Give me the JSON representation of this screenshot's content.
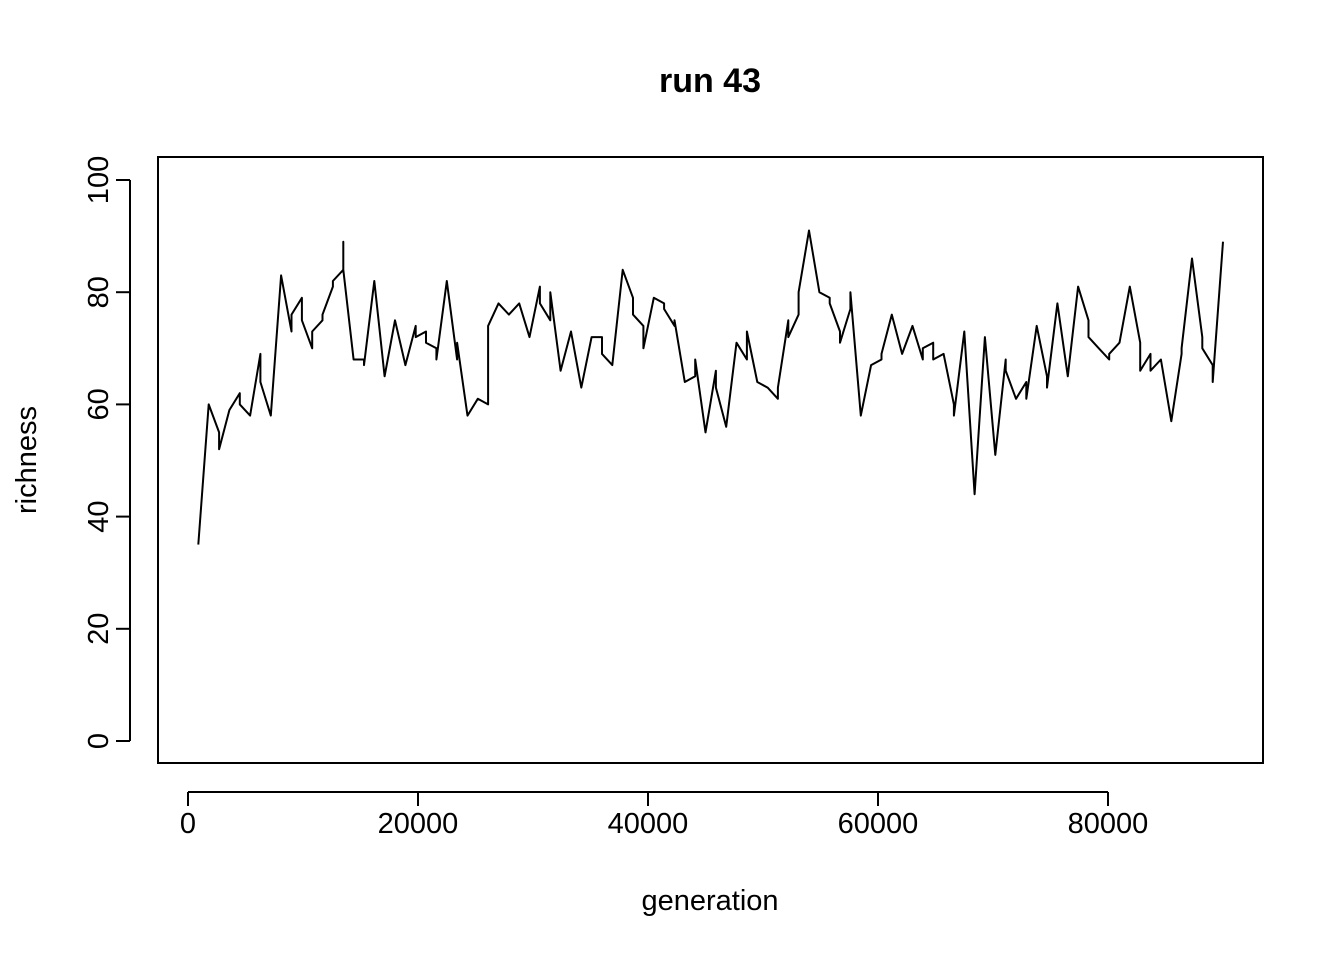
{
  "chart_data": {
    "type": "line",
    "title": "run 43",
    "xlabel": "generation",
    "ylabel": "richness",
    "xlim": [
      0,
      90000
    ],
    "ylim": [
      0,
      100
    ],
    "x_ticks": [
      {
        "value": 0,
        "label": "0"
      },
      {
        "value": 20000,
        "label": "20000"
      },
      {
        "value": 40000,
        "label": "40000"
      },
      {
        "value": 60000,
        "label": "60000"
      },
      {
        "value": 80000,
        "label": "80000"
      }
    ],
    "y_ticks": [
      {
        "value": 0,
        "label": "0"
      },
      {
        "value": 20,
        "label": "20"
      },
      {
        "value": 40,
        "label": "40"
      },
      {
        "value": 60,
        "label": "60"
      },
      {
        "value": 80,
        "label": "80"
      },
      {
        "value": 100,
        "label": "100"
      }
    ],
    "grid": false,
    "line_color": "#000000",
    "series": [
      {
        "x": [
          900,
          1800,
          2700,
          2700,
          3600,
          4500,
          4500,
          5400,
          6300,
          6300,
          7200,
          8100,
          9000,
          9000,
          9900,
          9900,
          10800,
          10800,
          11700,
          11700,
          12600,
          12600,
          13500,
          13500,
          13500,
          14400,
          15300,
          15300,
          16200,
          17100,
          18000,
          18900,
          19800,
          19800,
          20700,
          20700,
          21600,
          21600,
          22500,
          23400,
          23400,
          24300,
          25200,
          26100,
          26100,
          27000,
          27900,
          27900,
          28800,
          29700,
          30600,
          30600,
          31500,
          31500,
          32400,
          33300,
          34200,
          35100,
          36000,
          36000,
          36900,
          37800,
          38700,
          38700,
          39600,
          39600,
          40500,
          41400,
          41400,
          42300,
          42300,
          43200,
          44100,
          44100,
          45000,
          45900,
          45900,
          46800,
          47700,
          48600,
          48600,
          49500,
          50400,
          51300,
          51300,
          52200,
          52200,
          53100,
          53100,
          54000,
          54900,
          55800,
          55800,
          56700,
          56700,
          57600,
          57600,
          58500,
          59400,
          60300,
          60300,
          61200,
          62100,
          63000,
          63900,
          63900,
          64800,
          64800,
          65700,
          65700,
          66600,
          66600,
          67500,
          68400,
          69300,
          70200,
          71100,
          71100,
          72000,
          72900,
          72900,
          73800,
          74700,
          74700,
          75600,
          76500,
          77400,
          78300,
          78300,
          79200,
          80100,
          80100,
          81000,
          81900,
          82800,
          82800,
          83700,
          83700,
          84600,
          85500,
          86400,
          86400,
          87300,
          88200,
          88200,
          89100,
          89100,
          90000
        ],
        "y": [
          35,
          60,
          55,
          52,
          59,
          62,
          60,
          58,
          69,
          64,
          58,
          83,
          73,
          76,
          79,
          75,
          70,
          73,
          75,
          76,
          81,
          82,
          84,
          89,
          84,
          68,
          68,
          67,
          82,
          65,
          75,
          67,
          74,
          72,
          73,
          71,
          70,
          68,
          82,
          68,
          71,
          58,
          61,
          60,
          74,
          78,
          76,
          76,
          78,
          72,
          81,
          78,
          75,
          80,
          66,
          73,
          63,
          72,
          72,
          69,
          67,
          84,
          79,
          76,
          74,
          70,
          79,
          78,
          77,
          74,
          75,
          64,
          65,
          68,
          55,
          66,
          63,
          56,
          71,
          68,
          73,
          64,
          63,
          61,
          63,
          75,
          72,
          76,
          80,
          91,
          80,
          79,
          78,
          73,
          71,
          77,
          80,
          58,
          67,
          68,
          69,
          76,
          69,
          74,
          68,
          70,
          71,
          68,
          69,
          69,
          60,
          58,
          73,
          44,
          72,
          51,
          68,
          66,
          61,
          64,
          61,
          74,
          65,
          63,
          78,
          65,
          81,
          75,
          72,
          70,
          68,
          69,
          71,
          81,
          71,
          66,
          69,
          66,
          68,
          57,
          69,
          70,
          86,
          72,
          70,
          67,
          64,
          89
        ]
      }
    ]
  }
}
